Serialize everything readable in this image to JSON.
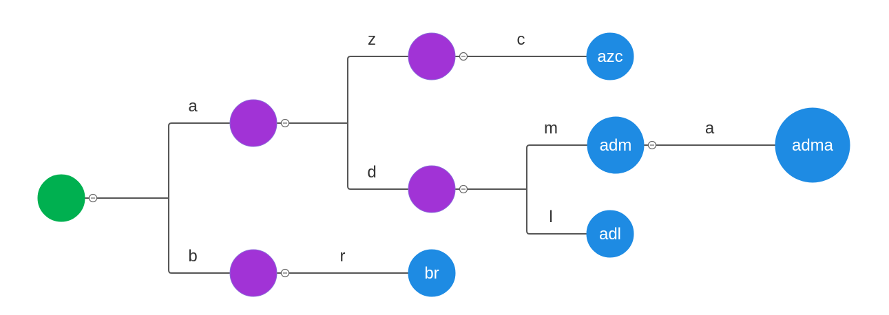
{
  "colors": {
    "root": "#00b050",
    "internal": "#a133d6",
    "leaf": "#1e8be3",
    "edge": "#555555",
    "label": "#333333"
  },
  "tree": {
    "nodes": [
      {
        "id": "root",
        "label": "",
        "kind": "root",
        "collapsible": true
      },
      {
        "id": "a",
        "label": "",
        "kind": "internal",
        "collapsible": true
      },
      {
        "id": "b",
        "label": "",
        "kind": "internal",
        "collapsible": true
      },
      {
        "id": "az",
        "label": "",
        "kind": "internal",
        "collapsible": true
      },
      {
        "id": "ad",
        "label": "",
        "kind": "internal",
        "collapsible": true
      },
      {
        "id": "azc",
        "label": "azc",
        "kind": "leaf",
        "collapsible": false
      },
      {
        "id": "adm",
        "label": "adm",
        "kind": "leaf",
        "collapsible": true
      },
      {
        "id": "adl",
        "label": "adl",
        "kind": "leaf",
        "collapsible": false
      },
      {
        "id": "adma",
        "label": "adma",
        "kind": "leaf",
        "collapsible": false
      },
      {
        "id": "br",
        "label": "br",
        "kind": "leaf",
        "collapsible": false
      }
    ],
    "edges": [
      {
        "from": "root",
        "to": "a",
        "label": "a"
      },
      {
        "from": "root",
        "to": "b",
        "label": "b"
      },
      {
        "from": "a",
        "to": "az",
        "label": "z"
      },
      {
        "from": "a",
        "to": "ad",
        "label": "d"
      },
      {
        "from": "az",
        "to": "azc",
        "label": "c"
      },
      {
        "from": "ad",
        "to": "adm",
        "label": "m"
      },
      {
        "from": "ad",
        "to": "adl",
        "label": "l"
      },
      {
        "from": "adm",
        "to": "adma",
        "label": "a"
      },
      {
        "from": "b",
        "to": "br",
        "label": "r"
      }
    ]
  }
}
